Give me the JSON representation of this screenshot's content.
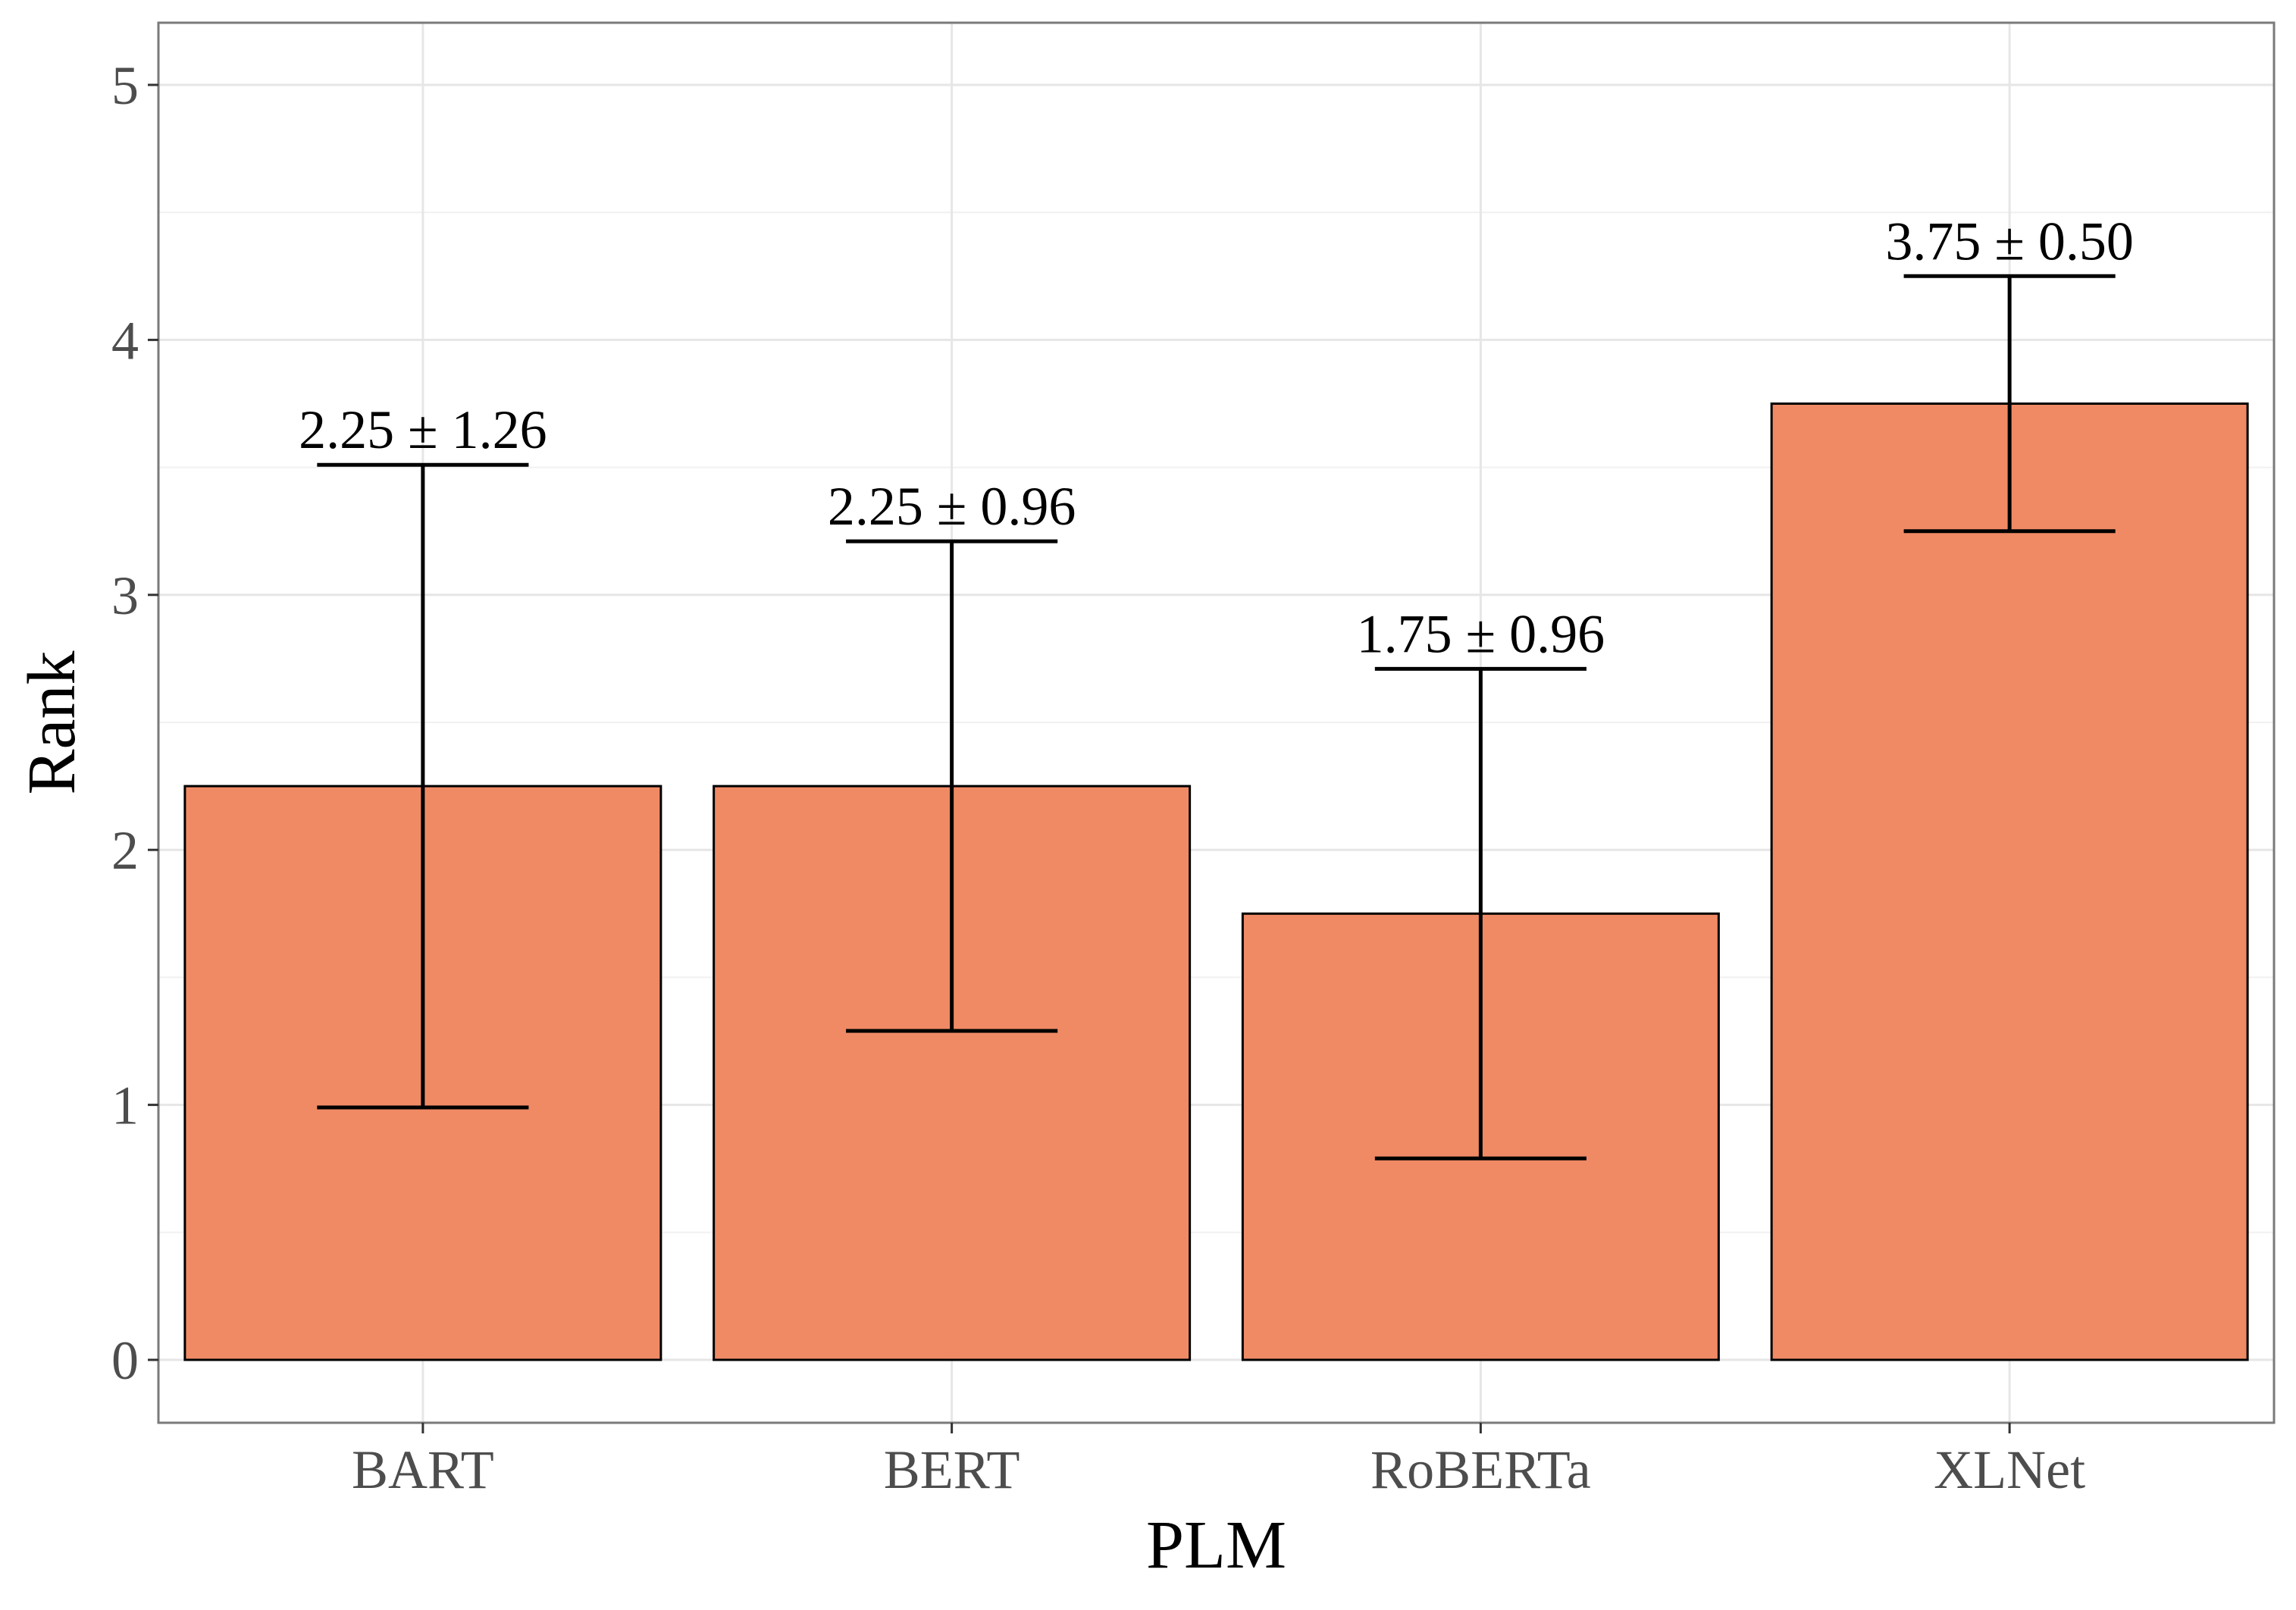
{
  "chart_data": {
    "type": "bar",
    "title": "",
    "xlabel": "PLM",
    "ylabel": "Rank",
    "categories": [
      "BART",
      "BERT",
      "RoBERTa",
      "XLNet"
    ],
    "values": [
      2.25,
      2.25,
      1.75,
      3.75
    ],
    "errors": [
      1.26,
      0.96,
      0.96,
      0.5
    ],
    "data_labels": [
      "2.25 ± 1.26",
      "2.25 ± 0.96",
      "1.75 ± 0.96",
      "3.75 ± 0.50"
    ],
    "ylim": [
      0,
      5
    ],
    "yticks": [
      0,
      1,
      2,
      3,
      4,
      5
    ],
    "grid": true,
    "legend": "none",
    "bar_color": "#F08A64",
    "bar_edge_color": "#000000"
  }
}
